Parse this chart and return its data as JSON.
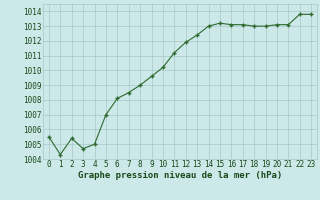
{
  "x": [
    0,
    1,
    2,
    3,
    4,
    5,
    6,
    7,
    8,
    9,
    10,
    11,
    12,
    13,
    14,
    15,
    16,
    17,
    18,
    19,
    20,
    21,
    22,
    23
  ],
  "y": [
    1005.5,
    1004.3,
    1005.4,
    1004.7,
    1005.0,
    1007.0,
    1008.1,
    1008.5,
    1009.0,
    1009.6,
    1010.2,
    1011.2,
    1011.9,
    1012.4,
    1013.0,
    1013.2,
    1013.1,
    1013.1,
    1013.0,
    1013.0,
    1013.1,
    1013.1,
    1013.8,
    1013.8
  ],
  "line_color": "#2d6a2d",
  "marker_color": "#2d6a2d",
  "bg_color": "#cce8e8",
  "grid_color": "#aac8c8",
  "xlabel": "Graphe pression niveau de la mer (hPa)",
  "xlabel_color": "#1a4a1a",
  "xlabel_fontsize": 6.5,
  "tick_color": "#1a4a1a",
  "tick_fontsize": 5.5,
  "ylim": [
    1004,
    1014.5
  ],
  "yticks": [
    1004,
    1005,
    1006,
    1007,
    1008,
    1009,
    1010,
    1011,
    1012,
    1013,
    1014
  ],
  "xticks": [
    0,
    1,
    2,
    3,
    4,
    5,
    6,
    7,
    8,
    9,
    10,
    11,
    12,
    13,
    14,
    15,
    16,
    17,
    18,
    19,
    20,
    21,
    22,
    23
  ],
  "xtick_labels": [
    "0",
    "1",
    "2",
    "3",
    "4",
    "5",
    "6",
    "7",
    "8",
    "9",
    "10",
    "11",
    "12",
    "13",
    "14",
    "15",
    "16",
    "17",
    "18",
    "19",
    "20",
    "21",
    "22",
    "23"
  ]
}
